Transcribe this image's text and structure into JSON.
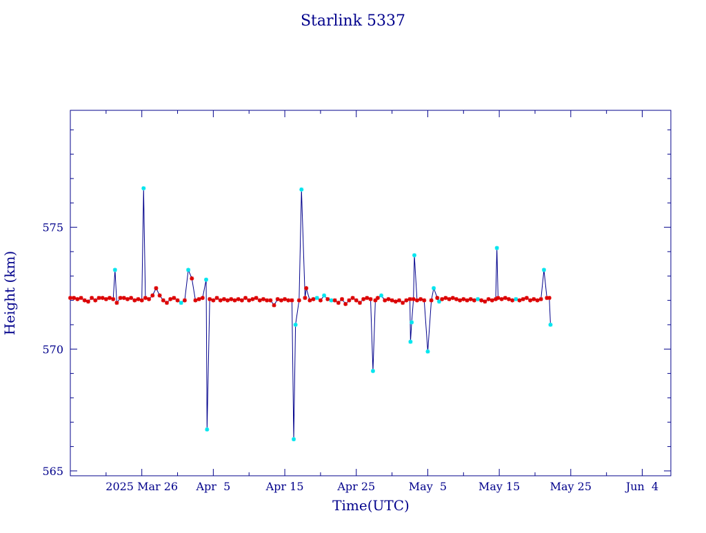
{
  "chart_data": {
    "type": "line",
    "title": "Starlink 5337",
    "xlabel": "Time(UTC)",
    "ylabel": "Height (km)",
    "x_ticks": [
      "2025 Mar 26",
      "Apr  5",
      "Apr 15",
      "Apr 25",
      "May  5",
      "May 15",
      "May 25",
      "Jun  4"
    ],
    "y_ticks": [
      "565",
      "570",
      "575"
    ],
    "xlim": [
      "2025-03-16",
      "2025-06-08"
    ],
    "ylim": [
      564.8,
      579.8
    ],
    "grid": false,
    "colors": {
      "axis": "#00008B",
      "line": "#00008B",
      "normal": "#DD0000",
      "anomaly": "#00E5EE"
    },
    "series": [
      {
        "points": [
          {
            "x": "2025-03-16T00:00",
            "y": 572.1,
            "flag": "normal"
          },
          {
            "x": "2025-03-16T12:00",
            "y": 572.1,
            "flag": "normal"
          },
          {
            "x": "2025-03-17T00:00",
            "y": 572.05,
            "flag": "normal"
          },
          {
            "x": "2025-03-17T12:00",
            "y": 572.1,
            "flag": "normal"
          },
          {
            "x": "2025-03-18T00:00",
            "y": 572.0,
            "flag": "normal"
          },
          {
            "x": "2025-03-18T12:00",
            "y": 571.95,
            "flag": "normal"
          },
          {
            "x": "2025-03-19T00:00",
            "y": 572.1,
            "flag": "normal"
          },
          {
            "x": "2025-03-19T12:00",
            "y": 572.0,
            "flag": "normal"
          },
          {
            "x": "2025-03-20T00:00",
            "y": 572.1,
            "flag": "normal"
          },
          {
            "x": "2025-03-20T12:00",
            "y": 572.1,
            "flag": "normal"
          },
          {
            "x": "2025-03-21T00:00",
            "y": 572.05,
            "flag": "normal"
          },
          {
            "x": "2025-03-21T12:00",
            "y": 572.1,
            "flag": "normal"
          },
          {
            "x": "2025-03-22T00:00",
            "y": 572.05,
            "flag": "normal"
          },
          {
            "x": "2025-03-22T06:00",
            "y": 573.25,
            "flag": "anomaly"
          },
          {
            "x": "2025-03-22T12:00",
            "y": 571.9,
            "flag": "normal"
          },
          {
            "x": "2025-03-23T00:00",
            "y": 572.1,
            "flag": "normal"
          },
          {
            "x": "2025-03-23T12:00",
            "y": 572.1,
            "flag": "normal"
          },
          {
            "x": "2025-03-24T00:00",
            "y": 572.05,
            "flag": "normal"
          },
          {
            "x": "2025-03-24T12:00",
            "y": 572.1,
            "flag": "normal"
          },
          {
            "x": "2025-03-25T00:00",
            "y": 572.0,
            "flag": "normal"
          },
          {
            "x": "2025-03-25T12:00",
            "y": 572.05,
            "flag": "normal"
          },
          {
            "x": "2025-03-26T00:00",
            "y": 572.0,
            "flag": "normal"
          },
          {
            "x": "2025-03-26T06:00",
            "y": 576.6,
            "flag": "anomaly"
          },
          {
            "x": "2025-03-26T12:00",
            "y": 572.1,
            "flag": "normal"
          },
          {
            "x": "2025-03-27T00:00",
            "y": 572.05,
            "flag": "normal"
          },
          {
            "x": "2025-03-27T12:00",
            "y": 572.2,
            "flag": "normal"
          },
          {
            "x": "2025-03-28T00:00",
            "y": 572.5,
            "flag": "normal"
          },
          {
            "x": "2025-03-28T12:00",
            "y": 572.2,
            "flag": "normal"
          },
          {
            "x": "2025-03-29T00:00",
            "y": 572.0,
            "flag": "normal"
          },
          {
            "x": "2025-03-29T12:00",
            "y": 571.9,
            "flag": "normal"
          },
          {
            "x": "2025-03-30T00:00",
            "y": 572.05,
            "flag": "normal"
          },
          {
            "x": "2025-03-30T12:00",
            "y": 572.1,
            "flag": "normal"
          },
          {
            "x": "2025-03-31T00:00",
            "y": 572.0,
            "flag": "normal"
          },
          {
            "x": "2025-03-31T12:00",
            "y": 571.9,
            "flag": "anomaly"
          },
          {
            "x": "2025-04-01T00:00",
            "y": 572.0,
            "flag": "normal"
          },
          {
            "x": "2025-04-01T12:00",
            "y": 573.25,
            "flag": "anomaly"
          },
          {
            "x": "2025-04-02T00:00",
            "y": 572.9,
            "flag": "normal"
          },
          {
            "x": "2025-04-02T12:00",
            "y": 572.0,
            "flag": "normal"
          },
          {
            "x": "2025-04-03T00:00",
            "y": 572.05,
            "flag": "normal"
          },
          {
            "x": "2025-04-03T12:00",
            "y": 572.1,
            "flag": "normal"
          },
          {
            "x": "2025-04-04T00:00",
            "y": 572.85,
            "flag": "anomaly"
          },
          {
            "x": "2025-04-04T03:00",
            "y": 566.7,
            "flag": "anomaly"
          },
          {
            "x": "2025-04-04T12:00",
            "y": 572.05,
            "flag": "normal"
          },
          {
            "x": "2025-04-05T00:00",
            "y": 572.0,
            "flag": "normal"
          },
          {
            "x": "2025-04-05T12:00",
            "y": 572.1,
            "flag": "normal"
          },
          {
            "x": "2025-04-06T00:00",
            "y": 572.0,
            "flag": "normal"
          },
          {
            "x": "2025-04-06T12:00",
            "y": 572.05,
            "flag": "normal"
          },
          {
            "x": "2025-04-07T00:00",
            "y": 572.0,
            "flag": "normal"
          },
          {
            "x": "2025-04-07T12:00",
            "y": 572.05,
            "flag": "normal"
          },
          {
            "x": "2025-04-08T00:00",
            "y": 572.0,
            "flag": "normal"
          },
          {
            "x": "2025-04-08T12:00",
            "y": 572.05,
            "flag": "normal"
          },
          {
            "x": "2025-04-09T00:00",
            "y": 572.0,
            "flag": "normal"
          },
          {
            "x": "2025-04-09T12:00",
            "y": 572.1,
            "flag": "normal"
          },
          {
            "x": "2025-04-10T00:00",
            "y": 572.0,
            "flag": "normal"
          },
          {
            "x": "2025-04-10T12:00",
            "y": 572.05,
            "flag": "normal"
          },
          {
            "x": "2025-04-11T00:00",
            "y": 572.1,
            "flag": "normal"
          },
          {
            "x": "2025-04-11T12:00",
            "y": 572.0,
            "flag": "normal"
          },
          {
            "x": "2025-04-12T00:00",
            "y": 572.05,
            "flag": "normal"
          },
          {
            "x": "2025-04-12T12:00",
            "y": 572.0,
            "flag": "normal"
          },
          {
            "x": "2025-04-13T00:00",
            "y": 572.0,
            "flag": "normal"
          },
          {
            "x": "2025-04-13T12:00",
            "y": 571.8,
            "flag": "normal"
          },
          {
            "x": "2025-04-14T00:00",
            "y": 572.05,
            "flag": "normal"
          },
          {
            "x": "2025-04-14T12:00",
            "y": 572.0,
            "flag": "normal"
          },
          {
            "x": "2025-04-15T00:00",
            "y": 572.05,
            "flag": "normal"
          },
          {
            "x": "2025-04-15T12:00",
            "y": 572.0,
            "flag": "normal"
          },
          {
            "x": "2025-04-16T00:00",
            "y": 572.0,
            "flag": "normal"
          },
          {
            "x": "2025-04-16T06:00",
            "y": 566.3,
            "flag": "anomaly"
          },
          {
            "x": "2025-04-16T12:00",
            "y": 571.0,
            "flag": "anomaly"
          },
          {
            "x": "2025-04-17T00:00",
            "y": 572.0,
            "flag": "normal"
          },
          {
            "x": "2025-04-17T08:00",
            "y": 576.55,
            "flag": "anomaly"
          },
          {
            "x": "2025-04-17T20:00",
            "y": 572.1,
            "flag": "normal"
          },
          {
            "x": "2025-04-18T00:00",
            "y": 572.5,
            "flag": "normal"
          },
          {
            "x": "2025-04-18T12:00",
            "y": 572.0,
            "flag": "normal"
          },
          {
            "x": "2025-04-19T00:00",
            "y": 572.05,
            "flag": "normal"
          },
          {
            "x": "2025-04-19T12:00",
            "y": 572.1,
            "flag": "anomaly"
          },
          {
            "x": "2025-04-20T00:00",
            "y": 572.0,
            "flag": "normal"
          },
          {
            "x": "2025-04-20T12:00",
            "y": 572.2,
            "flag": "anomaly"
          },
          {
            "x": "2025-04-21T00:00",
            "y": 572.05,
            "flag": "normal"
          },
          {
            "x": "2025-04-21T12:00",
            "y": 572.0,
            "flag": "anomaly"
          },
          {
            "x": "2025-04-22T00:00",
            "y": 572.0,
            "flag": "normal"
          },
          {
            "x": "2025-04-22T12:00",
            "y": 571.9,
            "flag": "normal"
          },
          {
            "x": "2025-04-23T00:00",
            "y": 572.05,
            "flag": "normal"
          },
          {
            "x": "2025-04-23T12:00",
            "y": 571.85,
            "flag": "normal"
          },
          {
            "x": "2025-04-24T00:00",
            "y": 572.0,
            "flag": "normal"
          },
          {
            "x": "2025-04-24T12:00",
            "y": 572.1,
            "flag": "normal"
          },
          {
            "x": "2025-04-25T00:00",
            "y": 572.0,
            "flag": "normal"
          },
          {
            "x": "2025-04-25T12:00",
            "y": 571.9,
            "flag": "normal"
          },
          {
            "x": "2025-04-26T00:00",
            "y": 572.05,
            "flag": "normal"
          },
          {
            "x": "2025-04-26T12:00",
            "y": 572.1,
            "flag": "normal"
          },
          {
            "x": "2025-04-27T00:00",
            "y": 572.05,
            "flag": "normal"
          },
          {
            "x": "2025-04-27T08:00",
            "y": 569.1,
            "flag": "anomaly"
          },
          {
            "x": "2025-04-27T16:00",
            "y": 572.0,
            "flag": "normal"
          },
          {
            "x": "2025-04-28T00:00",
            "y": 572.1,
            "flag": "normal"
          },
          {
            "x": "2025-04-28T12:00",
            "y": 572.2,
            "flag": "anomaly"
          },
          {
            "x": "2025-04-29T00:00",
            "y": 572.0,
            "flag": "normal"
          },
          {
            "x": "2025-04-29T12:00",
            "y": 572.05,
            "flag": "normal"
          },
          {
            "x": "2025-04-30T00:00",
            "y": 572.0,
            "flag": "normal"
          },
          {
            "x": "2025-04-30T12:00",
            "y": 571.95,
            "flag": "normal"
          },
          {
            "x": "2025-05-01T00:00",
            "y": 572.0,
            "flag": "normal"
          },
          {
            "x": "2025-05-01T12:00",
            "y": 571.9,
            "flag": "normal"
          },
          {
            "x": "2025-05-02T00:00",
            "y": 572.0,
            "flag": "normal"
          },
          {
            "x": "2025-05-02T12:00",
            "y": 572.05,
            "flag": "normal"
          },
          {
            "x": "2025-05-02T14:00",
            "y": 570.3,
            "flag": "anomaly"
          },
          {
            "x": "2025-05-02T18:00",
            "y": 571.1,
            "flag": "anomaly"
          },
          {
            "x": "2025-05-03T00:00",
            "y": 572.05,
            "flag": "normal"
          },
          {
            "x": "2025-05-03T03:00",
            "y": 573.85,
            "flag": "anomaly"
          },
          {
            "x": "2025-05-03T12:00",
            "y": 572.0,
            "flag": "normal"
          },
          {
            "x": "2025-05-04T00:00",
            "y": 572.05,
            "flag": "normal"
          },
          {
            "x": "2025-05-04T12:00",
            "y": 572.0,
            "flag": "normal"
          },
          {
            "x": "2025-05-05T00:00",
            "y": 569.9,
            "flag": "anomaly"
          },
          {
            "x": "2025-05-05T12:00",
            "y": 572.0,
            "flag": "normal"
          },
          {
            "x": "2025-05-05T20:00",
            "y": 572.5,
            "flag": "anomaly"
          },
          {
            "x": "2025-05-06T08:00",
            "y": 572.1,
            "flag": "normal"
          },
          {
            "x": "2025-05-06T14:00",
            "y": 571.95,
            "flag": "anomaly"
          },
          {
            "x": "2025-05-07T00:00",
            "y": 572.05,
            "flag": "normal"
          },
          {
            "x": "2025-05-07T12:00",
            "y": 572.1,
            "flag": "normal"
          },
          {
            "x": "2025-05-08T00:00",
            "y": 572.05,
            "flag": "normal"
          },
          {
            "x": "2025-05-08T12:00",
            "y": 572.1,
            "flag": "normal"
          },
          {
            "x": "2025-05-09T00:00",
            "y": 572.05,
            "flag": "normal"
          },
          {
            "x": "2025-05-09T12:00",
            "y": 572.0,
            "flag": "normal"
          },
          {
            "x": "2025-05-10T00:00",
            "y": 572.05,
            "flag": "normal"
          },
          {
            "x": "2025-05-10T12:00",
            "y": 572.0,
            "flag": "normal"
          },
          {
            "x": "2025-05-11T00:00",
            "y": 572.05,
            "flag": "normal"
          },
          {
            "x": "2025-05-11T12:00",
            "y": 572.0,
            "flag": "normal"
          },
          {
            "x": "2025-05-12T00:00",
            "y": 572.05,
            "flag": "anomaly"
          },
          {
            "x": "2025-05-12T12:00",
            "y": 572.0,
            "flag": "normal"
          },
          {
            "x": "2025-05-13T00:00",
            "y": 571.95,
            "flag": "normal"
          },
          {
            "x": "2025-05-13T12:00",
            "y": 572.05,
            "flag": "normal"
          },
          {
            "x": "2025-05-14T00:00",
            "y": 572.0,
            "flag": "normal"
          },
          {
            "x": "2025-05-14T12:00",
            "y": 572.05,
            "flag": "normal"
          },
          {
            "x": "2025-05-14T16:00",
            "y": 574.15,
            "flag": "anomaly"
          },
          {
            "x": "2025-05-14T20:00",
            "y": 572.1,
            "flag": "normal"
          },
          {
            "x": "2025-05-15T08:00",
            "y": 572.05,
            "flag": "normal"
          },
          {
            "x": "2025-05-15T20:00",
            "y": 572.1,
            "flag": "normal"
          },
          {
            "x": "2025-05-16T08:00",
            "y": 572.05,
            "flag": "normal"
          },
          {
            "x": "2025-05-16T20:00",
            "y": 572.0,
            "flag": "normal"
          },
          {
            "x": "2025-05-17T08:00",
            "y": 572.05,
            "flag": "anomaly"
          },
          {
            "x": "2025-05-17T20:00",
            "y": 572.0,
            "flag": "normal"
          },
          {
            "x": "2025-05-18T08:00",
            "y": 572.05,
            "flag": "normal"
          },
          {
            "x": "2025-05-18T20:00",
            "y": 572.1,
            "flag": "normal"
          },
          {
            "x": "2025-05-19T08:00",
            "y": 572.0,
            "flag": "normal"
          },
          {
            "x": "2025-05-19T20:00",
            "y": 572.05,
            "flag": "normal"
          },
          {
            "x": "2025-05-20T08:00",
            "y": 572.0,
            "flag": "normal"
          },
          {
            "x": "2025-05-20T20:00",
            "y": 572.05,
            "flag": "normal"
          },
          {
            "x": "2025-05-21T06:00",
            "y": 573.25,
            "flag": "anomaly"
          },
          {
            "x": "2025-05-21T16:00",
            "y": 572.1,
            "flag": "normal"
          },
          {
            "x": "2025-05-22T00:00",
            "y": 572.1,
            "flag": "normal"
          },
          {
            "x": "2025-05-22T04:00",
            "y": 571.0,
            "flag": "anomaly"
          }
        ]
      }
    ]
  }
}
